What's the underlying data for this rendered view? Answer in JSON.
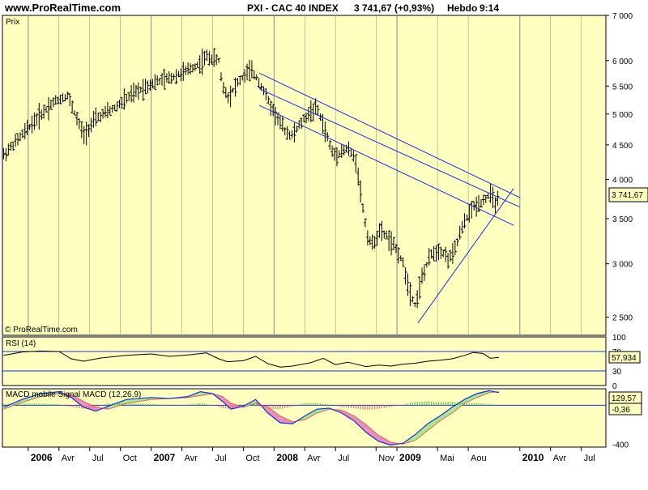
{
  "header": {
    "site": "www.ProRealTime.com",
    "instrument": "PXI - CAC 40 INDEX",
    "price_change": "3 741,67 (+0,93%)",
    "period": "Hebdo",
    "time": "9:14"
  },
  "watermark": "© ProRealTime.com",
  "colors": {
    "panel_bg": "#ffffc0",
    "bars": "#000000",
    "channel": "#1a2fd8",
    "macd_line": "#1a2fd8",
    "signal_line": "#e06060",
    "hist_pos": "#40c040",
    "hist_neg": "#e06060",
    "fill_up": "#a8e890",
    "fill_down": "#e890b8",
    "grid": "#888888"
  },
  "chart_data": [
    {
      "type": "line",
      "subtype": "ohlc-bars",
      "panel": "price",
      "label": "Prix",
      "scale": "log",
      "ylim": [
        2350,
        7000
      ],
      "y_ticks": [
        {
          "v": 7000,
          "label": "7 000"
        },
        {
          "v": 6000,
          "label": "6 000"
        },
        {
          "v": 5500,
          "label": "5 500"
        },
        {
          "v": 5000,
          "label": "5 000"
        },
        {
          "v": 4500,
          "label": "4 500"
        },
        {
          "v": 4000,
          "label": "4 000"
        },
        {
          "v": 3500,
          "label": "3 500"
        },
        {
          "v": 3000,
          "label": "3 000"
        },
        {
          "v": 2500,
          "label": "2 500"
        }
      ],
      "last_value": "3 741,67",
      "last": 3741.67,
      "x_ticks": [
        {
          "t": 2006.0,
          "label": "2006",
          "bold": true
        },
        {
          "t": 2006.25,
          "label": "Avr"
        },
        {
          "t": 2006.5,
          "label": "Jul"
        },
        {
          "t": 2006.75,
          "label": "Oct"
        },
        {
          "t": 2007.0,
          "label": "2007",
          "bold": true
        },
        {
          "t": 2007.25,
          "label": "Avr"
        },
        {
          "t": 2007.5,
          "label": "Jul"
        },
        {
          "t": 2007.75,
          "label": "Oct"
        },
        {
          "t": 2008.0,
          "label": "2008",
          "bold": true
        },
        {
          "t": 2008.25,
          "label": "Avr"
        },
        {
          "t": 2008.5,
          "label": "Jul"
        },
        {
          "t": 2008.83,
          "label": "Nov"
        },
        {
          "t": 2009.0,
          "label": "2009",
          "bold": true
        },
        {
          "t": 2009.33,
          "label": "Mai"
        },
        {
          "t": 2009.58,
          "label": "Aou"
        },
        {
          "t": 2010.0,
          "label": "2010",
          "bold": true
        },
        {
          "t": 2010.25,
          "label": "Avr"
        },
        {
          "t": 2010.5,
          "label": "Jul"
        }
      ],
      "xlim": [
        2005.79,
        2010.7
      ],
      "price_path": [
        [
          2005.8,
          4350
        ],
        [
          2005.95,
          4650
        ],
        [
          2006.05,
          4880
        ],
        [
          2006.2,
          5200
        ],
        [
          2006.32,
          5330
        ],
        [
          2006.4,
          4900
        ],
        [
          2006.45,
          4650
        ],
        [
          2006.55,
          4920
        ],
        [
          2006.7,
          5100
        ],
        [
          2006.85,
          5350
        ],
        [
          2007.0,
          5550
        ],
        [
          2007.15,
          5650
        ],
        [
          2007.3,
          5800
        ],
        [
          2007.4,
          5950
        ],
        [
          2007.45,
          6080
        ],
        [
          2007.55,
          6000
        ],
        [
          2007.58,
          5500
        ],
        [
          2007.63,
          5300
        ],
        [
          2007.7,
          5550
        ],
        [
          2007.8,
          5800
        ],
        [
          2007.85,
          5700
        ],
        [
          2007.92,
          5400
        ],
        [
          2007.97,
          5150
        ],
        [
          2008.05,
          4850
        ],
        [
          2008.1,
          4700
        ],
        [
          2008.15,
          4650
        ],
        [
          2008.22,
          4850
        ],
        [
          2008.3,
          5050
        ],
        [
          2008.35,
          5100
        ],
        [
          2008.42,
          4700
        ],
        [
          2008.48,
          4350
        ],
        [
          2008.55,
          4400
        ],
        [
          2008.6,
          4450
        ],
        [
          2008.67,
          4250
        ],
        [
          2008.72,
          3650
        ],
        [
          2008.76,
          3300
        ],
        [
          2008.8,
          3200
        ],
        [
          2008.86,
          3350
        ],
        [
          2008.92,
          3300
        ],
        [
          2008.96,
          3200
        ],
        [
          2009.0,
          3150
        ],
        [
          2009.05,
          3000
        ],
        [
          2009.1,
          2750
        ],
        [
          2009.15,
          2600
        ],
        [
          2009.2,
          2850
        ],
        [
          2009.28,
          3100
        ],
        [
          2009.35,
          3150
        ],
        [
          2009.42,
          3050
        ],
        [
          2009.46,
          3100
        ],
        [
          2009.52,
          3350
        ],
        [
          2009.58,
          3550
        ],
        [
          2009.63,
          3650
        ],
        [
          2009.68,
          3700
        ],
        [
          2009.72,
          3750
        ],
        [
          2009.76,
          3800
        ],
        [
          2009.8,
          3700
        ],
        [
          2009.83,
          3740
        ]
      ],
      "lines": [
        {
          "name": "channel-upper",
          "from": [
            2007.88,
            5750
          ],
          "to": [
            2010.0,
            3760
          ]
        },
        {
          "name": "channel-middle",
          "from": [
            2007.88,
            5450
          ],
          "to": [
            2010.0,
            3640
          ]
        },
        {
          "name": "channel-lower",
          "from": [
            2007.88,
            5150
          ],
          "to": [
            2009.95,
            3420
          ]
        },
        {
          "name": "uptrend",
          "from": [
            2009.17,
            2450
          ],
          "to": [
            2009.95,
            3880
          ]
        }
      ]
    },
    {
      "type": "line",
      "panel": "rsi",
      "label": "RSI (14)",
      "ylim": [
        0,
        100
      ],
      "y_ticks": [
        {
          "v": 100,
          "label": "100"
        },
        {
          "v": 0,
          "label": "0"
        }
      ],
      "levels": [
        {
          "v": 70,
          "label": "70"
        },
        {
          "v": 30,
          "label": "30"
        }
      ],
      "last_value": "57,934",
      "last": 57.934,
      "x": [
        2005.8,
        2005.95,
        2006.1,
        2006.25,
        2006.35,
        2006.45,
        2006.6,
        2006.8,
        2007.0,
        2007.15,
        2007.3,
        2007.45,
        2007.55,
        2007.62,
        2007.75,
        2007.85,
        2007.95,
        2008.05,
        2008.15,
        2008.3,
        2008.4,
        2008.5,
        2008.6,
        2008.75,
        2008.85,
        2008.95,
        2009.05,
        2009.15,
        2009.25,
        2009.35,
        2009.45,
        2009.55,
        2009.62,
        2009.7,
        2009.76,
        2009.83
      ],
      "values": [
        62,
        69,
        71,
        70,
        55,
        50,
        57,
        62,
        65,
        60,
        63,
        67,
        55,
        49,
        51,
        60,
        45,
        38,
        40,
        47,
        56,
        43,
        48,
        39,
        42,
        40,
        44,
        46,
        50,
        52,
        55,
        62,
        68,
        66,
        56,
        57.9
      ]
    },
    {
      "type": "line",
      "panel": "macd",
      "label": "MACD mobile Signal MACD (12,26,9)",
      "ylim": [
        -430,
        170
      ],
      "y_ticks": [
        {
          "v": -400,
          "label": "-400"
        }
      ],
      "zero_label": "0,36",
      "values_labels": [
        "129,57",
        "-0,36"
      ],
      "last_macd": 129.57,
      "last_hist": -0.36,
      "x": [
        2005.8,
        2005.95,
        2006.1,
        2006.25,
        2006.35,
        2006.45,
        2006.55,
        2006.65,
        2006.8,
        2007.0,
        2007.15,
        2007.3,
        2007.4,
        2007.5,
        2007.58,
        2007.65,
        2007.75,
        2007.85,
        2007.95,
        2008.05,
        2008.15,
        2008.25,
        2008.35,
        2008.45,
        2008.55,
        2008.65,
        2008.75,
        2008.85,
        2008.95,
        2009.05,
        2009.15,
        2009.25,
        2009.35,
        2009.45,
        2009.55,
        2009.65,
        2009.75,
        2009.83
      ],
      "macd": [
        -20,
        60,
        120,
        140,
        80,
        -20,
        -60,
        -10,
        60,
        80,
        70,
        90,
        140,
        120,
        40,
        -40,
        -10,
        60,
        -80,
        -180,
        -190,
        -110,
        -40,
        -30,
        -80,
        -160,
        -280,
        -370,
        -410,
        -390,
        -300,
        -190,
        -110,
        -20,
        60,
        120,
        150,
        130
      ],
      "signal": [
        -40,
        30,
        90,
        120,
        110,
        40,
        -20,
        -40,
        20,
        60,
        70,
        80,
        100,
        120,
        90,
        20,
        -20,
        20,
        -20,
        -110,
        -170,
        -150,
        -80,
        -40,
        -50,
        -110,
        -200,
        -310,
        -380,
        -400,
        -360,
        -260,
        -160,
        -80,
        20,
        80,
        130,
        140
      ]
    }
  ]
}
